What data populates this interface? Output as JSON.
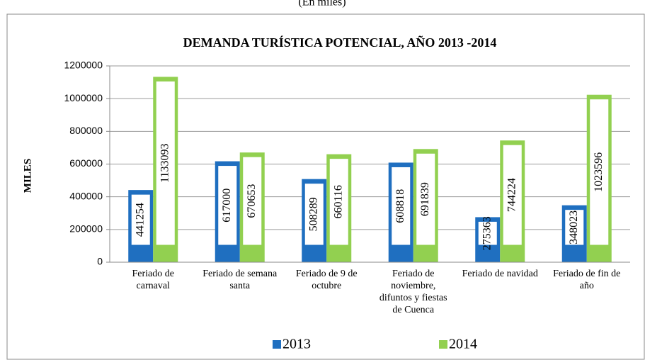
{
  "chart_data": {
    "type": "bar",
    "subtitle": "(En miles)",
    "title": "DEMANDA TURÍSTICA POTENCIAL, AÑO 2013 -2014",
    "y_label": "MILES",
    "categories": [
      "Feriado de carnaval",
      "Feriado de semana santa",
      "Feriado de 9 de octubre",
      "Feriado de noviembre, difuntos y fiestas de Cuenca",
      "Feriado de navidad",
      "Feriado de fin de año"
    ],
    "series": [
      {
        "name": "2013",
        "color": "#1f6fc0",
        "values": [
          441254,
          617000,
          508289,
          608818,
          275363,
          348023
        ]
      },
      {
        "name": "2014",
        "color": "#92d050",
        "values": [
          1133093,
          670653,
          660116,
          691839,
          744224,
          1023596
        ]
      }
    ],
    "ylim": [
      0,
      1200000
    ],
    "yticks": [
      0,
      200000,
      400000,
      600000,
      800000,
      1000000,
      1200000
    ],
    "grid": true,
    "legend": "bottom"
  }
}
